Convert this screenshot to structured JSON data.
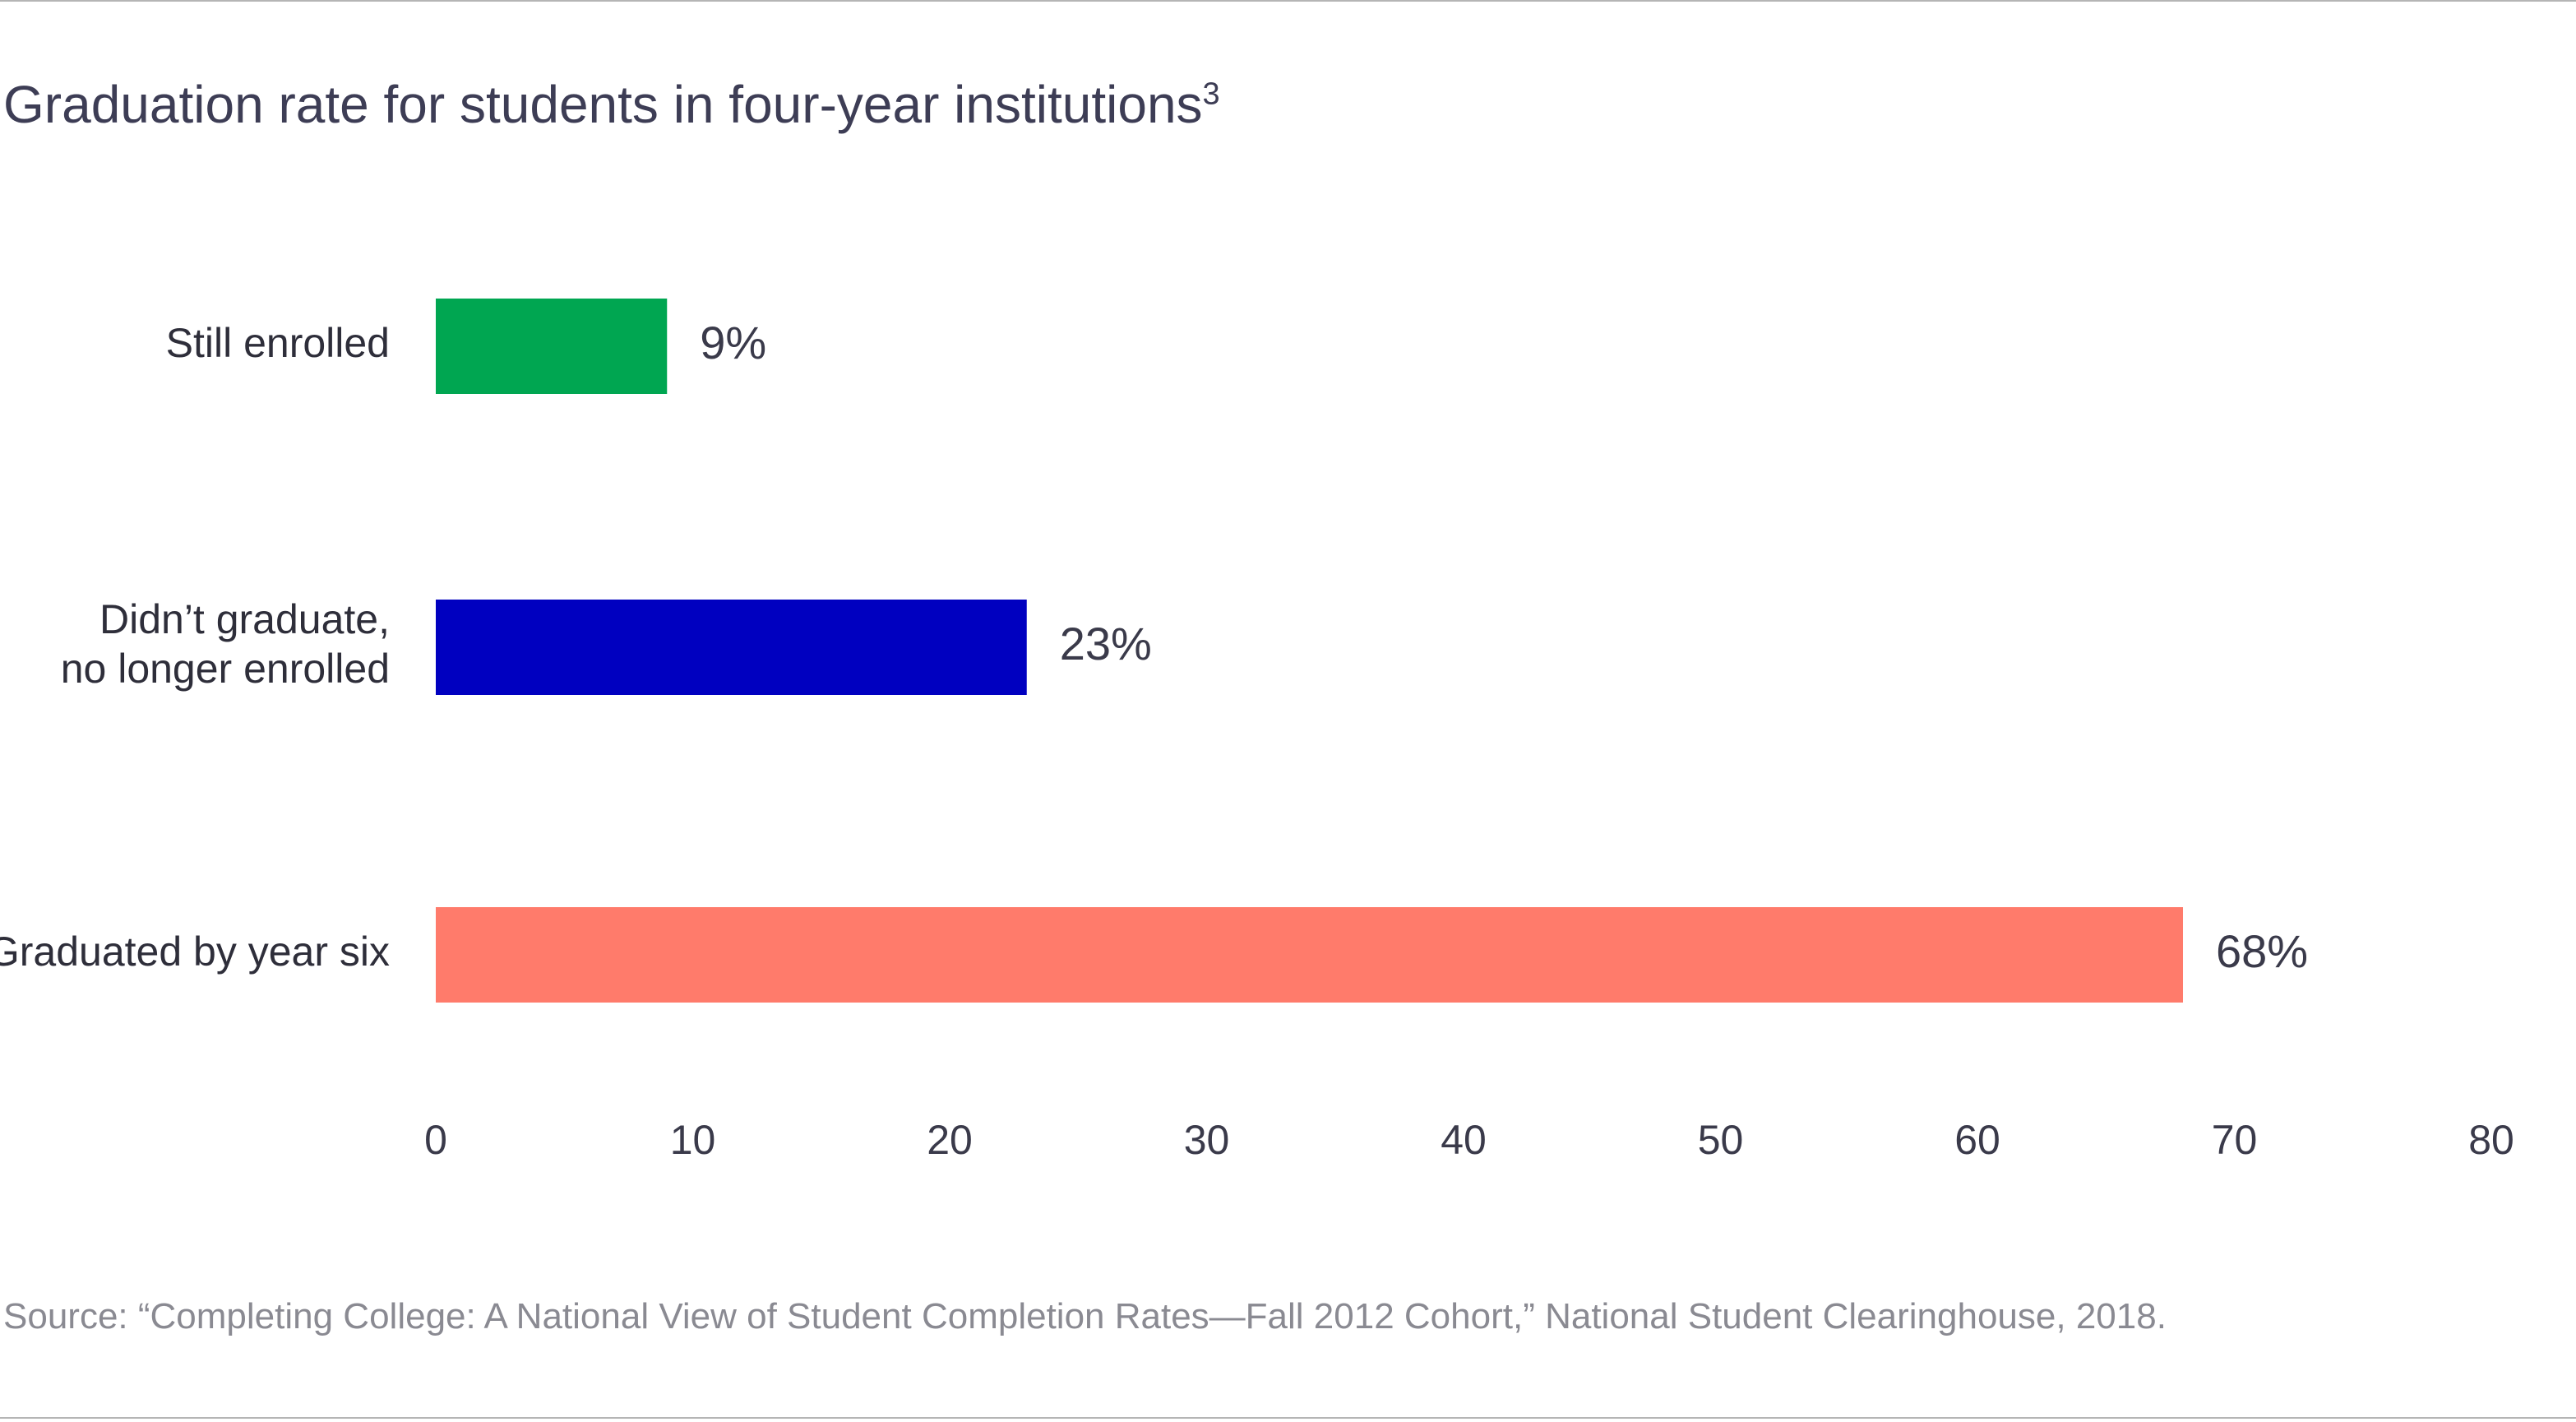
{
  "chart_data": {
    "type": "bar",
    "orientation": "horizontal",
    "title": "Graduation rate for students in four-year institutions",
    "title_footnote": "3",
    "categories": [
      [
        "Still enrolled"
      ],
      [
        "Didn’t graduate,",
        "no longer enrolled"
      ],
      [
        "Graduated by year six"
      ]
    ],
    "values": [
      9,
      23,
      68
    ],
    "value_labels": [
      "9%",
      "23%",
      "68%"
    ],
    "colors": [
      "#00a651",
      "#0000c0",
      "#ff7b6b"
    ],
    "xlim": [
      0,
      80
    ],
    "xticks": [
      "0",
      "10",
      "20",
      "30",
      "40",
      "50",
      "60",
      "70",
      "80"
    ],
    "grid": false,
    "legend": "none",
    "source": "Source: “Completing College: A National View of Student Completion Rates—Fall 2012 Cohort,” National Student Clearinghouse, 2018."
  }
}
